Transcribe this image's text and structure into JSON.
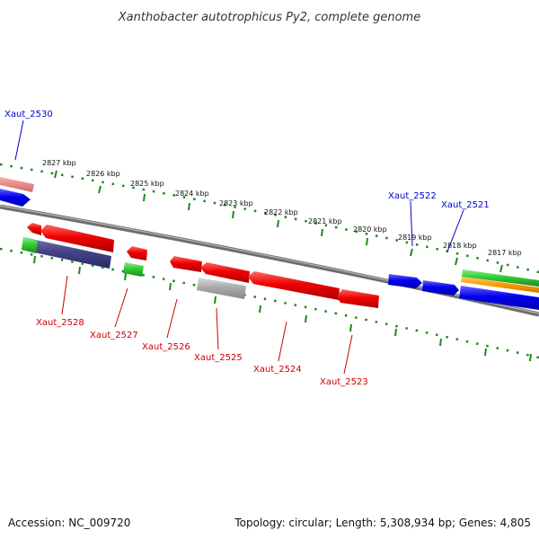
{
  "title": "Xanthobacter autotrophicus Py2, complete genome",
  "scale_labels": [
    "2827 kbp",
    "2826 kbp",
    "2825 kbp",
    "2824 kbp",
    "2823 kbp",
    "2822 kbp",
    "2821 kbp",
    "2820 kbp",
    "2819 kbp",
    "2818 kbp",
    "2817 kbp"
  ],
  "top_gene_labels": [
    "Xaut_2530",
    "Xaut_2522",
    "Xaut_2521"
  ],
  "bottom_gene_labels": [
    "Xaut_2528",
    "Xaut_2527",
    "Xaut_2526",
    "Xaut_2525",
    "Xaut_2524",
    "Xaut_2523"
  ],
  "footer": {
    "accession": "Accession: NC_009720",
    "summary": "Topology: circular; Length: 5,308,934 bp; Genes: 4,805"
  },
  "colors": {
    "forward_label": "#0000cc",
    "reverse_label": "#cc0000",
    "forward_gene": "#0000ee",
    "reverse_gene": "#ee0000",
    "rna_gene": "#33cc33",
    "ruler": "#1a8a1a",
    "backbone": "#808080",
    "pseudo_gene": "#aaaaaa",
    "overlap_gene": "#444488",
    "orange_gene": "#ff9900"
  }
}
